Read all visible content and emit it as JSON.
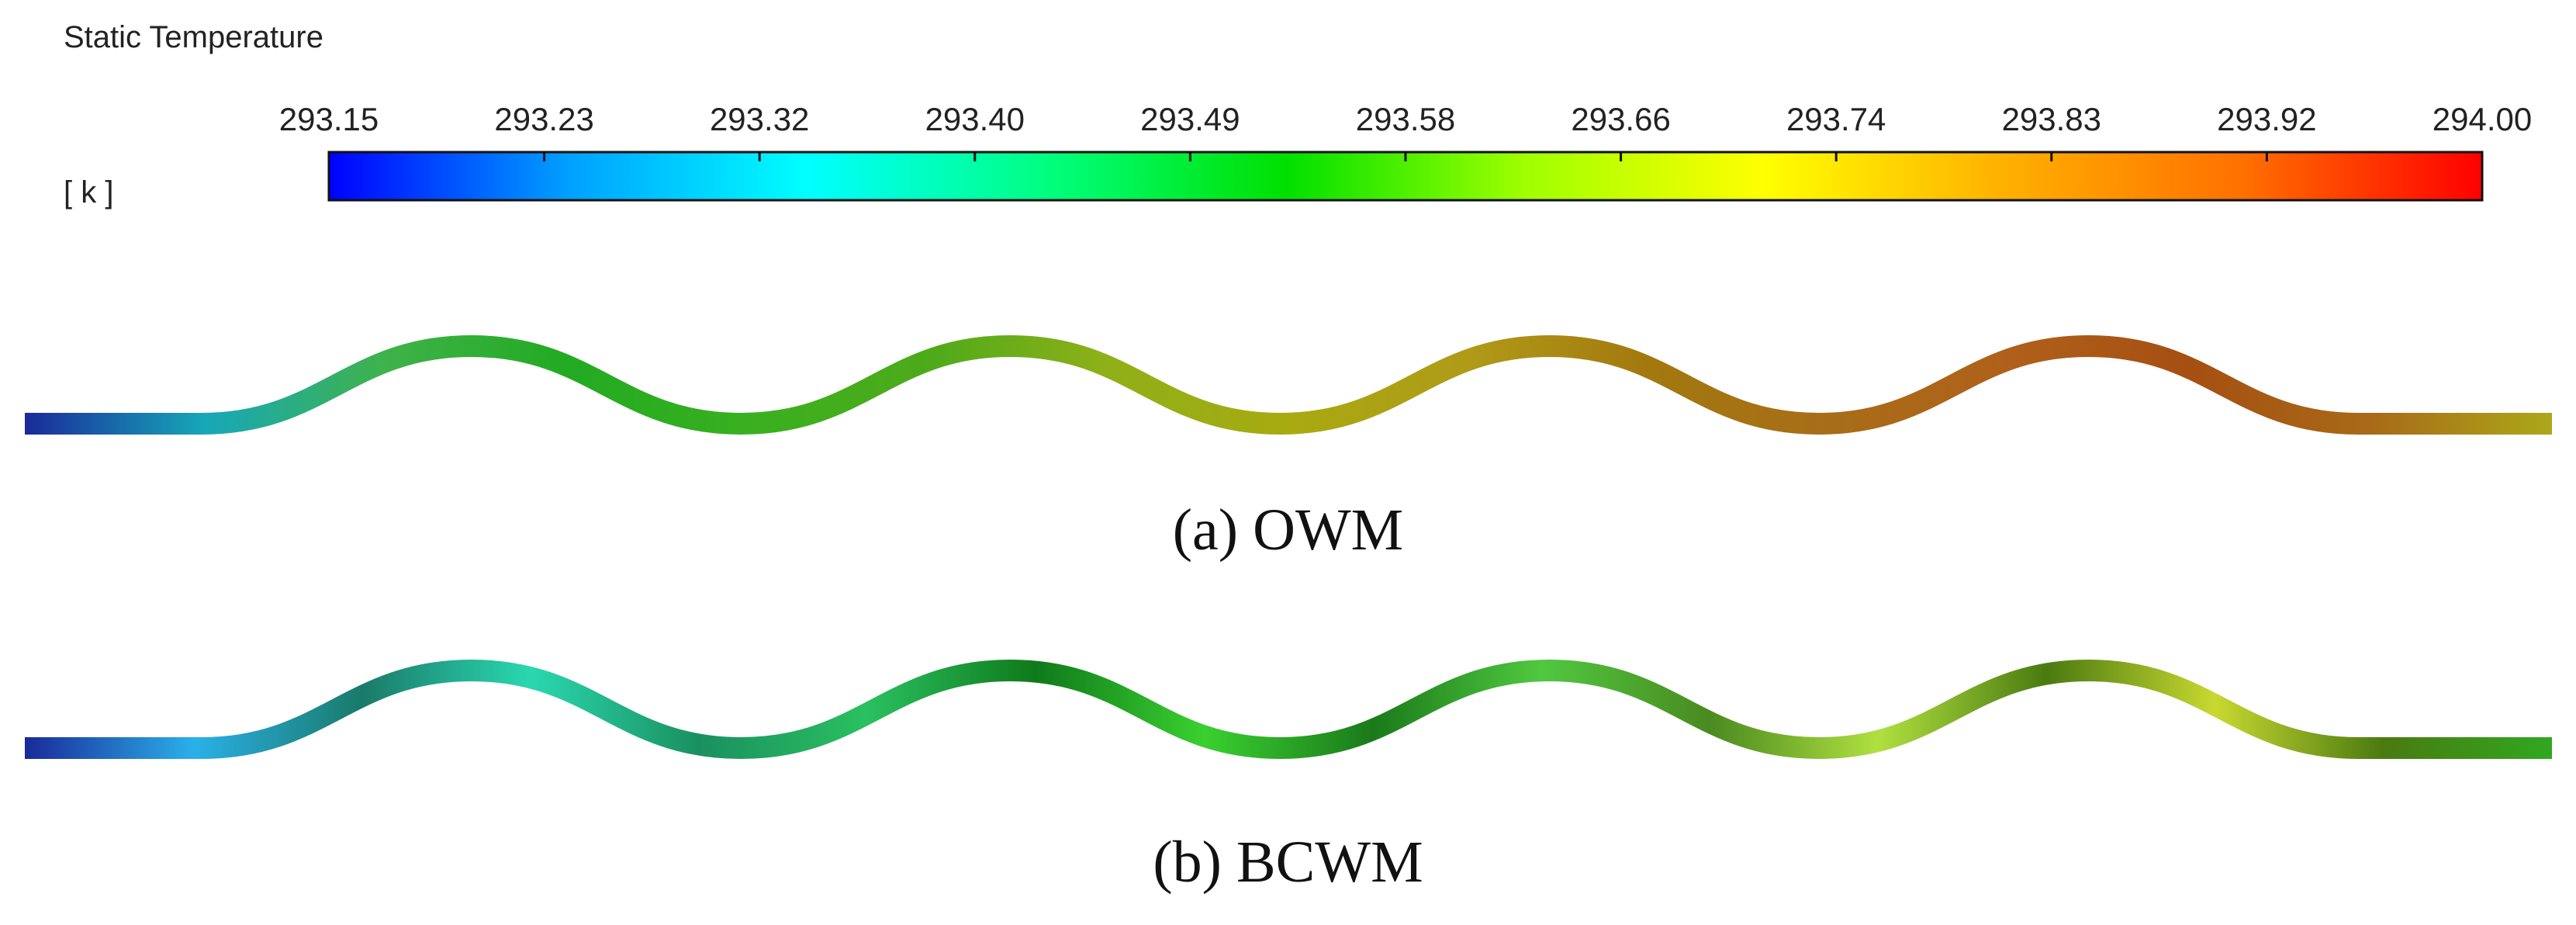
{
  "legend": {
    "title": "Static Temperature",
    "unit": "[ k ]",
    "min": 293.15,
    "max": 294.0,
    "tick_labels": [
      "293.15",
      "293.23",
      "293.32",
      "293.40",
      "293.49",
      "293.58",
      "293.66",
      "293.74",
      "293.83",
      "293.92",
      "294.00"
    ],
    "colormap": [
      "#0000ff",
      "#00a0ff",
      "#00ffff",
      "#00ff80",
      "#00e000",
      "#a0ff00",
      "#ffff00",
      "#ffb000",
      "#ff7000",
      "#ff0000"
    ]
  },
  "panels": [
    {
      "caption": "(a) OWM",
      "gradient_stops": [
        "#1a2a9a",
        "#17a8b8",
        "#3fb24a",
        "#22aa22",
        "#39b01f",
        "#4daa1a",
        "#8fb018",
        "#a8aa10",
        "#b09a18",
        "#a3780f",
        "#a86d18",
        "#b0601a",
        "#a54f12",
        "#a86a18",
        "#aca818"
      ]
    },
    {
      "caption": "(b) BCWM",
      "gradient_stops": [
        "#1a2a9a",
        "#2ab0e8",
        "#1a7a6a",
        "#2ad8b0",
        "#1a9060",
        "#2ac060",
        "#0f7a1a",
        "#3ad030",
        "#1a7a1a",
        "#50c840",
        "#4a8a20",
        "#b0e040",
        "#4a7a10",
        "#c8d830",
        "#4a7a10",
        "#30a820"
      ]
    }
  ]
}
